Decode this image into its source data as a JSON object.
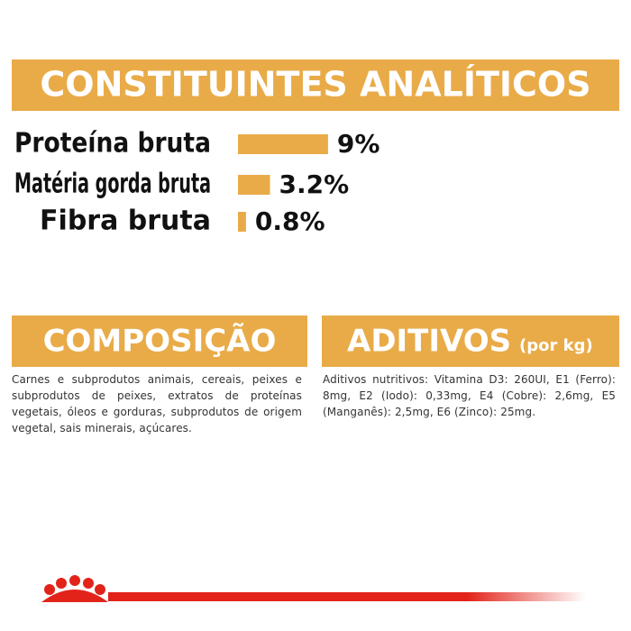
{
  "chart_data": {
    "type": "bar",
    "title": "CONSTITUINTES ANALÍTICOS",
    "categories": [
      "Proteína bruta",
      "Matéria gorda bruta",
      "Fibra bruta"
    ],
    "values": [
      9,
      3.2,
      0.8
    ],
    "value_labels": [
      "9%",
      "3.2%",
      "0.8%"
    ],
    "color": "#e9ab48"
  },
  "composition": {
    "title": "COMPOSIÇÃO",
    "text": "Carnes e subprodutos animais, cereais, peixes e subprodutos de peixes, extratos de proteínas vegetais, óleos e gorduras, subprodutos de origem vegetal, sais minerais, açúcares."
  },
  "additives": {
    "title": "ADITIVOS",
    "unit": "(por kg)",
    "text": "Aditivos nutritivos: Vitamina D3: 260UI, E1 (Ferro): 8mg, E2 (Iodo): 0,33mg, E4 (Cobre): 2,6mg, E5 (Manganês): 2,5mg, E6 (Zinco): 25mg."
  }
}
